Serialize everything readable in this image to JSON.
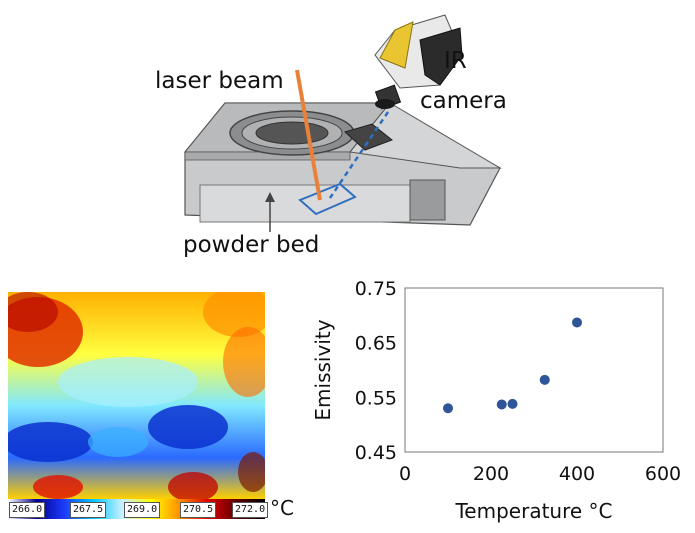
{
  "diagram": {
    "labels": {
      "laser_beam": "laser beam",
      "ir_line1": "IR",
      "ir_line2": "camera",
      "powder_bed": "powder bed"
    },
    "colors": {
      "laser": "#e8823a",
      "camera_view": "#2f6fbf",
      "machine_body": "#c9cacb",
      "camera_body": "#e9c532"
    }
  },
  "thermal_map": {
    "colorbar_ticks": [
      "266.0",
      "267.5",
      "269.0",
      "270.5",
      "272.0"
    ],
    "unit": "°C",
    "colorbar_colors": [
      "#ffffff",
      "#000090",
      "#1e3cff",
      "#00c8ff",
      "#c8f0ff",
      "#ffff00",
      "#ff9000",
      "#e00000",
      "#600000",
      "#000000"
    ]
  },
  "chart_data": {
    "type": "scatter",
    "xlabel": "Temperature °C",
    "ylabel": "Emissivity",
    "xlim": [
      0,
      600
    ],
    "ylim": [
      0.45,
      0.75
    ],
    "xticks": [
      "0",
      "200",
      "400",
      "600"
    ],
    "yticks": [
      "0.45",
      "0.55",
      "0.65",
      "0.75"
    ],
    "grid": false,
    "series": [
      {
        "points": [
          {
            "x": 100,
            "y": 0.53
          },
          {
            "x": 225,
            "y": 0.537
          },
          {
            "x": 250,
            "y": 0.538
          },
          {
            "x": 325,
            "y": 0.582
          },
          {
            "x": 400,
            "y": 0.687
          }
        ],
        "color": "#2e5597"
      }
    ]
  }
}
